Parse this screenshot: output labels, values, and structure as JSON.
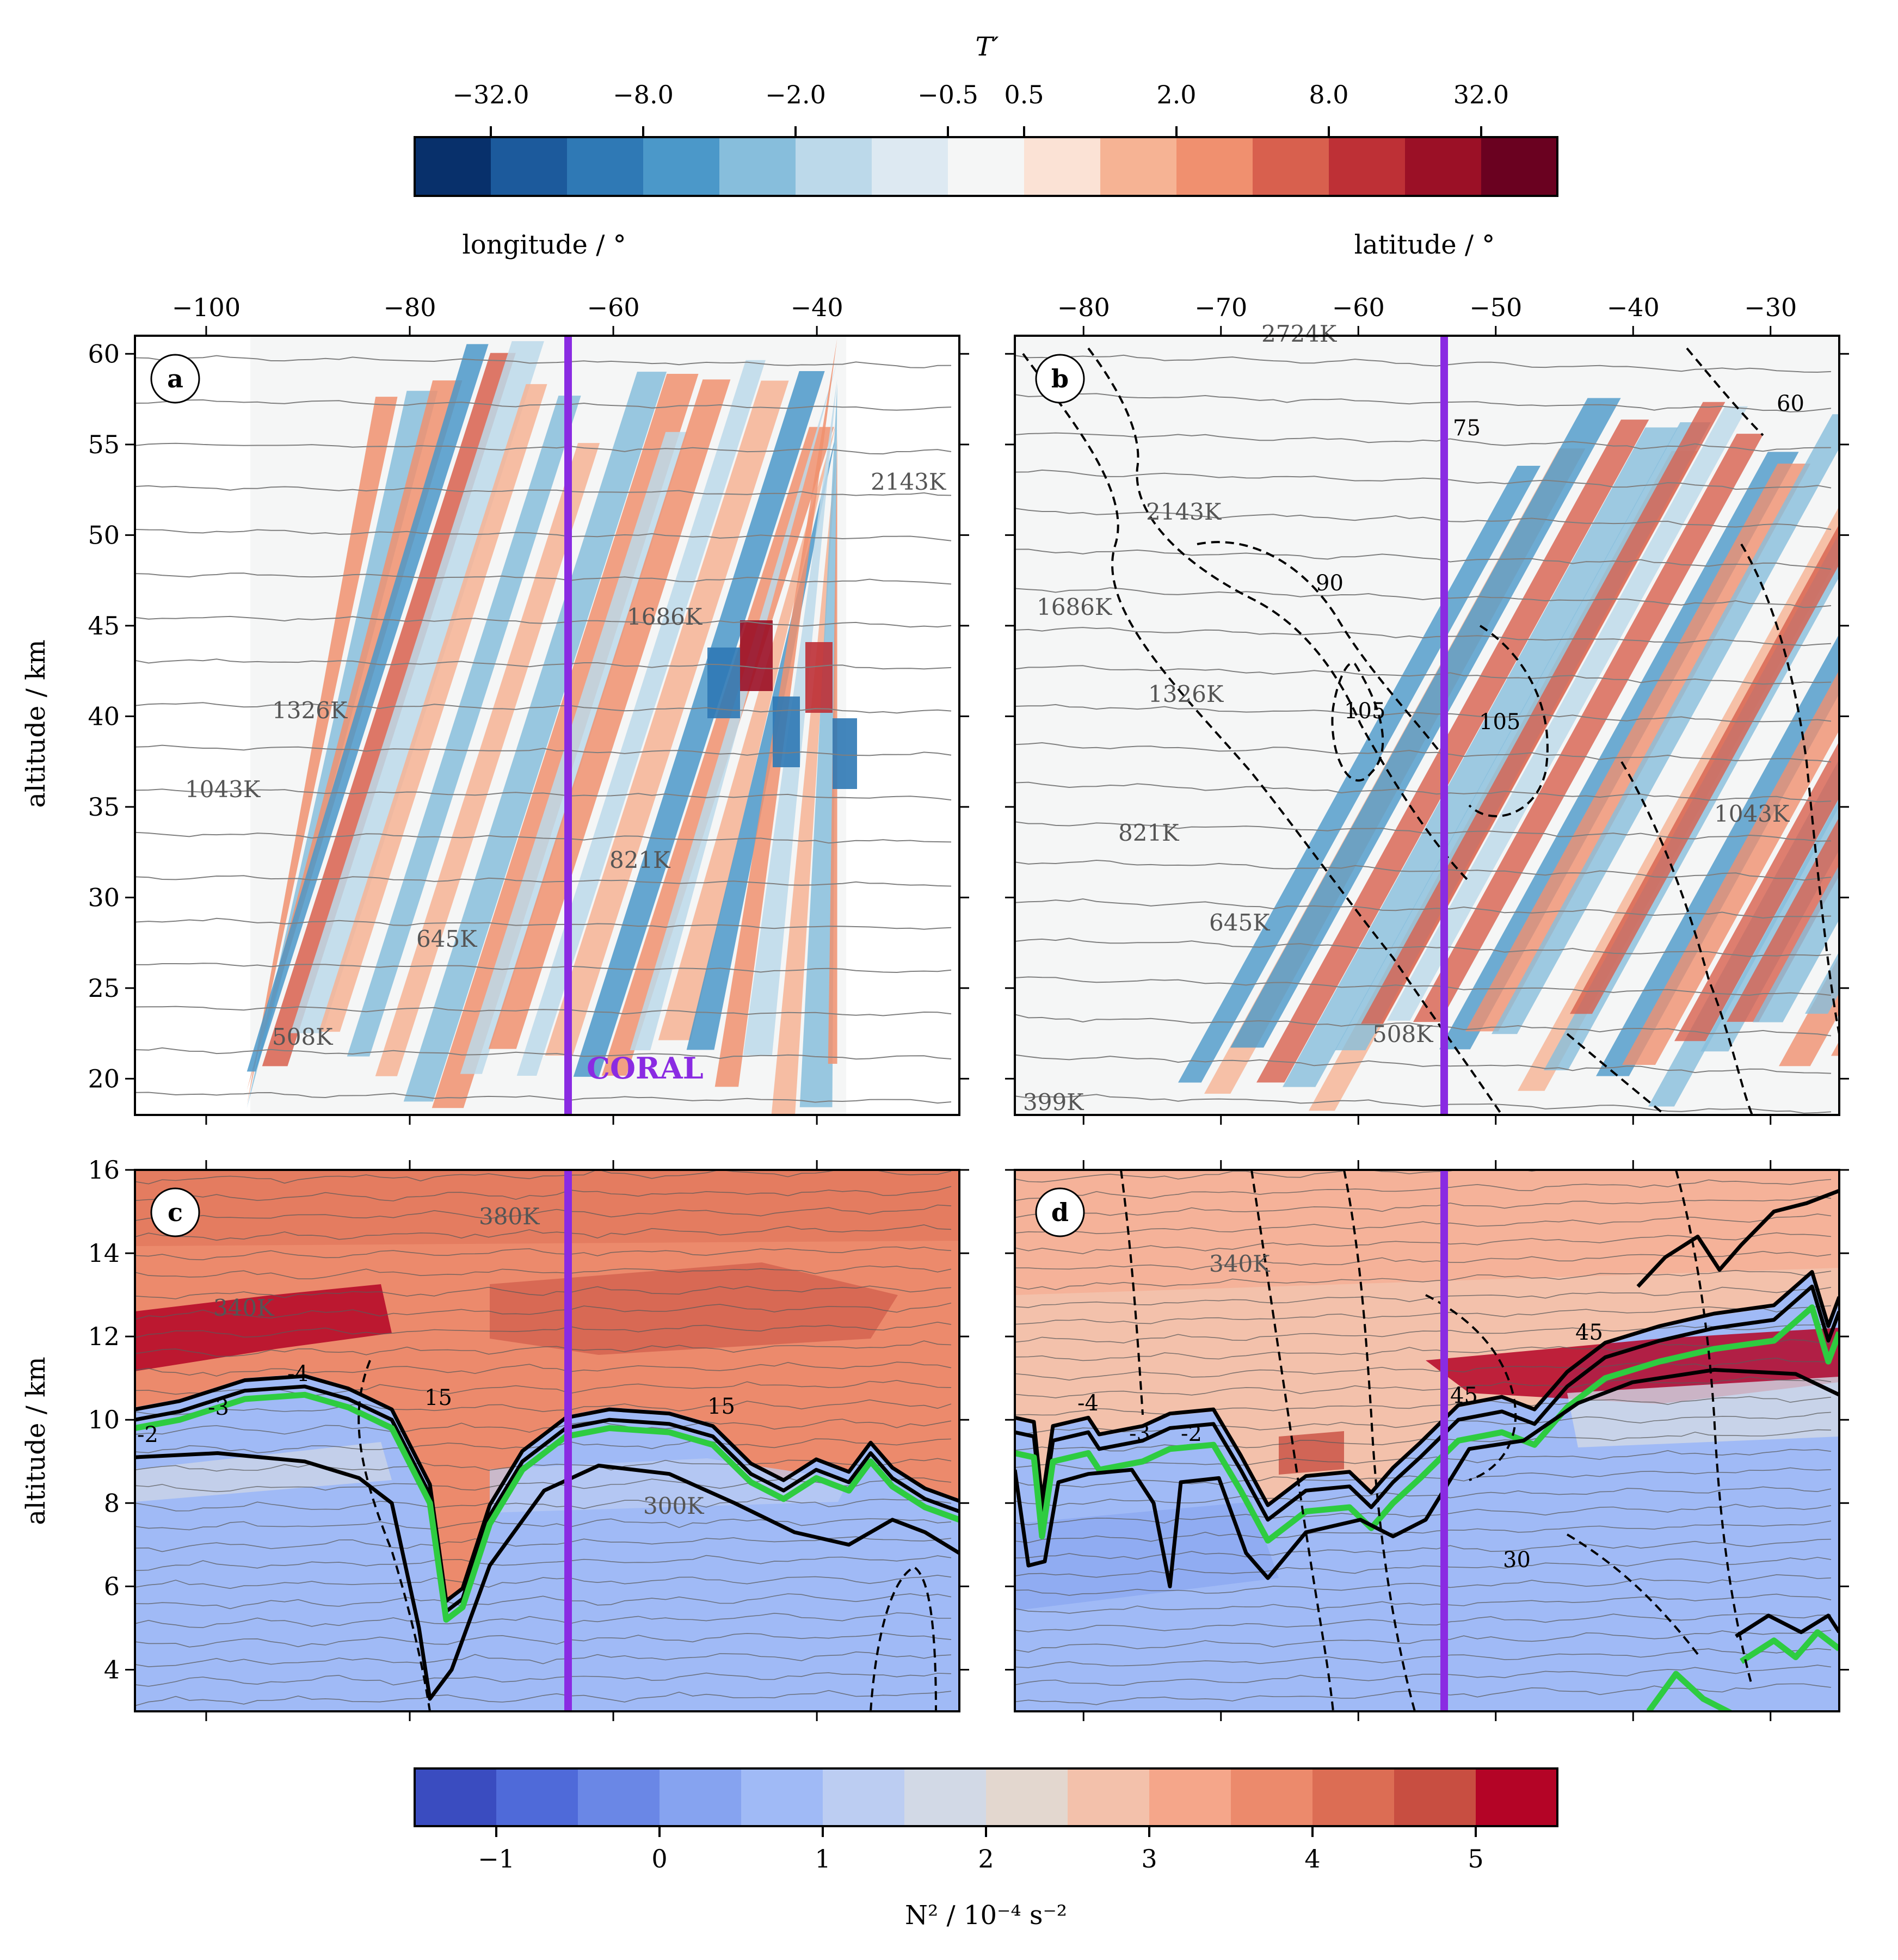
{
  "colors": {
    "diverging_T": [
      "#08306b",
      "#1c5a9c",
      "#2f79b5",
      "#4b98c9",
      "#87bedc",
      "#bcd9ea",
      "#dde9f2",
      "#f5f6f6",
      "#fbe2d5",
      "#f6b394",
      "#f0906f",
      "#d8604e",
      "#be3036",
      "#9b1026",
      "#6a0120"
    ],
    "diverging_N2": [
      "#3a4cc0",
      "#4f6ad9",
      "#6a87e6",
      "#86a3f0",
      "#a0baf6",
      "#bccdf2",
      "#d2d9e6",
      "#e3d7cf",
      "#f3c1ab",
      "#f5a68a",
      "#ec8a6c",
      "#dc6d54",
      "#c84e41",
      "#b40426"
    ],
    "coral_line": "#8a2be2",
    "tropopause_green": "#2ecc40",
    "contour_black": "#000000",
    "isentrope_gray": "#7f7f7f"
  },
  "colorbar_top": {
    "label": "T′",
    "ticks": [
      "−32.0",
      "−8.0",
      "−2.0",
      "−0.5",
      "0.5",
      "2.0",
      "8.0",
      "32.0"
    ]
  },
  "colorbar_bottom": {
    "label": "N² / 10⁻⁴ s⁻²",
    "ticks": [
      "−1",
      "0",
      "1",
      "2",
      "3",
      "4",
      "5"
    ]
  },
  "panels": {
    "a": {
      "letter": "a",
      "xlabel": "longitude / °",
      "ylabel": "altitude / km",
      "xticks": [
        "−100",
        "−80",
        "−60",
        "−40"
      ],
      "yticks": [
        "20",
        "25",
        "30",
        "35",
        "40",
        "45",
        "50",
        "55",
        "60"
      ],
      "isentropes": [
        "2143K",
        "1686K",
        "1326K",
        "1043K",
        "821K",
        "645K",
        "508K"
      ],
      "annotation": "CORAL"
    },
    "b": {
      "letter": "b",
      "xlabel": "latitude / °",
      "xticks": [
        "−80",
        "−70",
        "−60",
        "−50",
        "−40",
        "−30"
      ],
      "isentropes": [
        "2724K",
        "2143K",
        "1686K",
        "1326K",
        "1043K",
        "821K",
        "645K",
        "508K",
        "399K"
      ],
      "wind_labels": [
        "75",
        "60",
        "90",
        "105",
        "105"
      ]
    },
    "c": {
      "letter": "c",
      "ylabel": "altitude / km",
      "yticks": [
        "4",
        "6",
        "8",
        "10",
        "12",
        "14",
        "16"
      ],
      "isentropes": [
        "380K",
        "340K",
        "300K"
      ],
      "pv_labels": [
        "-4",
        "-3",
        "-2"
      ],
      "wind_labels": [
        "15",
        "15"
      ]
    },
    "d": {
      "letter": "d",
      "isentropes": [
        "340K"
      ],
      "pv_labels": [
        "-4",
        "-3",
        "-2"
      ],
      "wind_labels": [
        "45",
        "45",
        "30"
      ]
    }
  },
  "chart_data": [
    {
      "type": "heatmap",
      "panel": "a",
      "x_quantity": "longitude",
      "xlim": [
        -107,
        -26
      ],
      "ylim": [
        18,
        61
      ],
      "xticks": [
        -100,
        -80,
        -60,
        -40
      ],
      "yticks": [
        20,
        25,
        30,
        35,
        40,
        45,
        50,
        55,
        60
      ],
      "coral_longitude": -68,
      "data_extent_longitude": [
        -96,
        -38
      ],
      "field": "T′ (temperature perturbation), tilted alternating warm/cold phase lines",
      "isentropes": {
        "2143K": 52.5,
        "1686K": 45.5,
        "1326K": 40,
        "1043K": 35.5,
        "821K": 31.5,
        "645K": 27,
        "508K": 22
      }
    },
    {
      "type": "heatmap",
      "panel": "b",
      "x_quantity": "latitude",
      "xlim": [
        -85,
        -25
      ],
      "ylim": [
        18,
        61
      ],
      "xticks": [
        -80,
        -70,
        -60,
        -50,
        -40,
        -30
      ],
      "coral_latitude": -54,
      "wind_contours": [
        60,
        75,
        90,
        105
      ],
      "isentropes": {
        "2724K": 60,
        "2143K": 50.5,
        "1686K": 46,
        "1326K": 41,
        "1043K": 35,
        "821K": 32,
        "645K": 28,
        "508K": 22.5,
        "399K": 19
      }
    },
    {
      "type": "heatmap",
      "panel": "c",
      "x_quantity": "longitude",
      "xlim": [
        -107,
        -26
      ],
      "ylim": [
        3,
        16
      ],
      "yticks": [
        4,
        6,
        8,
        10,
        12,
        14,
        16
      ],
      "coral_longitude": -68,
      "field": "N² / 10⁻⁴ s⁻²",
      "pv_contours": [
        -4,
        -3,
        -2
      ],
      "wind_contours": [
        15
      ],
      "isentropes": {
        "380K": 14.9,
        "340K": 11.7,
        "300K": 7.8
      }
    },
    {
      "type": "heatmap",
      "panel": "d",
      "x_quantity": "latitude",
      "xlim": [
        -85,
        -25
      ],
      "ylim": [
        3,
        16
      ],
      "coral_latitude": -54,
      "field": "N² / 10⁻⁴ s⁻²",
      "pv_contours": [
        -4,
        -3,
        -2
      ],
      "wind_contours": [
        30,
        45
      ],
      "isentropes": {
        "340K": 13.9
      }
    }
  ]
}
